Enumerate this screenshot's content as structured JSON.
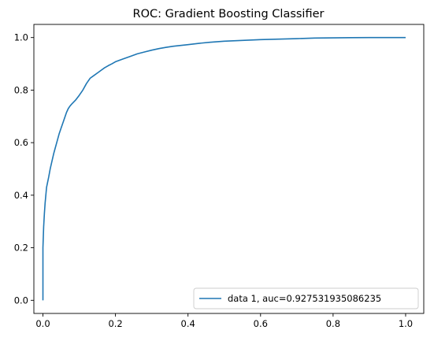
{
  "chart_data": {
    "type": "line",
    "title": "ROC: Gradient Boosting Classifier",
    "xlabel": "",
    "ylabel": "",
    "xlim": [
      -0.025,
      1.05
    ],
    "ylim": [
      -0.05,
      1.05
    ],
    "xticks": [
      0.0,
      0.2,
      0.4,
      0.6,
      0.8,
      1.0
    ],
    "xtick_labels": [
      "0.0",
      "0.2",
      "0.4",
      "0.6",
      "0.8",
      "1.0"
    ],
    "yticks": [
      0.0,
      0.2,
      0.4,
      0.6,
      0.8,
      1.0
    ],
    "ytick_labels": [
      "0.0",
      "0.2",
      "0.4",
      "0.6",
      "0.8",
      "1.0"
    ],
    "grid": false,
    "legend_position": "lower-right",
    "series": [
      {
        "name": "data 1, auc=0.927531935086235",
        "color": "#1f77b4",
        "x": [
          0.0,
          0.0,
          0.002,
          0.004,
          0.006,
          0.008,
          0.01,
          0.013,
          0.016,
          0.02,
          0.025,
          0.03,
          0.035,
          0.04,
          0.045,
          0.05,
          0.055,
          0.06,
          0.065,
          0.07,
          0.075,
          0.08,
          0.085,
          0.09,
          0.1,
          0.11,
          0.12,
          0.13,
          0.14,
          0.15,
          0.16,
          0.17,
          0.18,
          0.19,
          0.2,
          0.22,
          0.24,
          0.26,
          0.28,
          0.3,
          0.32,
          0.34,
          0.36,
          0.38,
          0.4,
          0.43,
          0.46,
          0.5,
          0.55,
          0.6,
          0.65,
          0.7,
          0.75,
          0.8,
          0.85,
          0.9,
          0.95,
          1.0
        ],
        "y": [
          0.0,
          0.2,
          0.28,
          0.33,
          0.37,
          0.4,
          0.43,
          0.45,
          0.47,
          0.5,
          0.53,
          0.56,
          0.585,
          0.61,
          0.635,
          0.655,
          0.675,
          0.695,
          0.715,
          0.73,
          0.74,
          0.748,
          0.755,
          0.762,
          0.78,
          0.8,
          0.825,
          0.845,
          0.855,
          0.865,
          0.875,
          0.885,
          0.893,
          0.9,
          0.908,
          0.918,
          0.928,
          0.938,
          0.945,
          0.952,
          0.958,
          0.963,
          0.967,
          0.97,
          0.973,
          0.978,
          0.982,
          0.986,
          0.989,
          0.992,
          0.994,
          0.996,
          0.998,
          0.999,
          0.9995,
          1.0,
          1.0,
          1.0
        ]
      }
    ]
  }
}
